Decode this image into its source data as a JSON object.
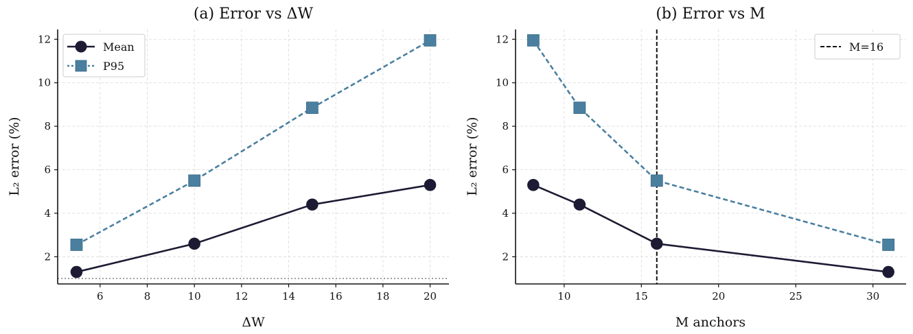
{
  "colors": {
    "mean": "#1c1b33",
    "p95": "#4a7fa0",
    "reference": "#999999",
    "grid": "#dddddd",
    "marker_line": "#111111"
  },
  "chart_data": [
    {
      "type": "line",
      "title": "(a) Error vs ΔW",
      "xlabel": "ΔW",
      "ylabel": "L₂ error (%)",
      "x": [
        5,
        10,
        15,
        20
      ],
      "xlim": [
        4.2,
        20.8
      ],
      "ylim": [
        0.75,
        12.45
      ],
      "xticks": [
        6,
        8,
        10,
        12,
        14,
        16,
        18,
        20
      ],
      "yticks": [
        2,
        4,
        6,
        8,
        10,
        12
      ],
      "grid": true,
      "legend_position": "top-left",
      "series": [
        {
          "name": "Mean",
          "values": [
            1.3,
            2.6,
            4.4,
            5.3
          ],
          "marker": "circle",
          "linestyle": "solid"
        },
        {
          "name": "P95",
          "values": [
            2.55,
            5.5,
            8.85,
            11.95
          ],
          "marker": "square",
          "linestyle": "dashed"
        }
      ],
      "hline": {
        "y": 1.0,
        "linestyle": "dotted"
      }
    },
    {
      "type": "line",
      "title": "(b) Error vs M",
      "xlabel": "M anchors",
      "ylabel": "L₂ error (%)",
      "x": [
        8,
        11,
        16,
        31
      ],
      "xlim": [
        6.85,
        32.15
      ],
      "ylim": [
        0.75,
        12.45
      ],
      "xticks": [
        10,
        15,
        20,
        25,
        30
      ],
      "yticks": [
        2,
        4,
        6,
        8,
        10,
        12
      ],
      "grid": true,
      "legend_position": "top-right",
      "series": [
        {
          "name": "Mean",
          "values": [
            5.3,
            4.4,
            2.6,
            1.3
          ],
          "marker": "circle",
          "linestyle": "solid"
        },
        {
          "name": "P95",
          "values": [
            11.95,
            8.85,
            5.5,
            2.55
          ],
          "marker": "square",
          "linestyle": "dashed"
        }
      ],
      "vline": {
        "x": 16,
        "label": "M=16",
        "linestyle": "dashed"
      }
    }
  ]
}
